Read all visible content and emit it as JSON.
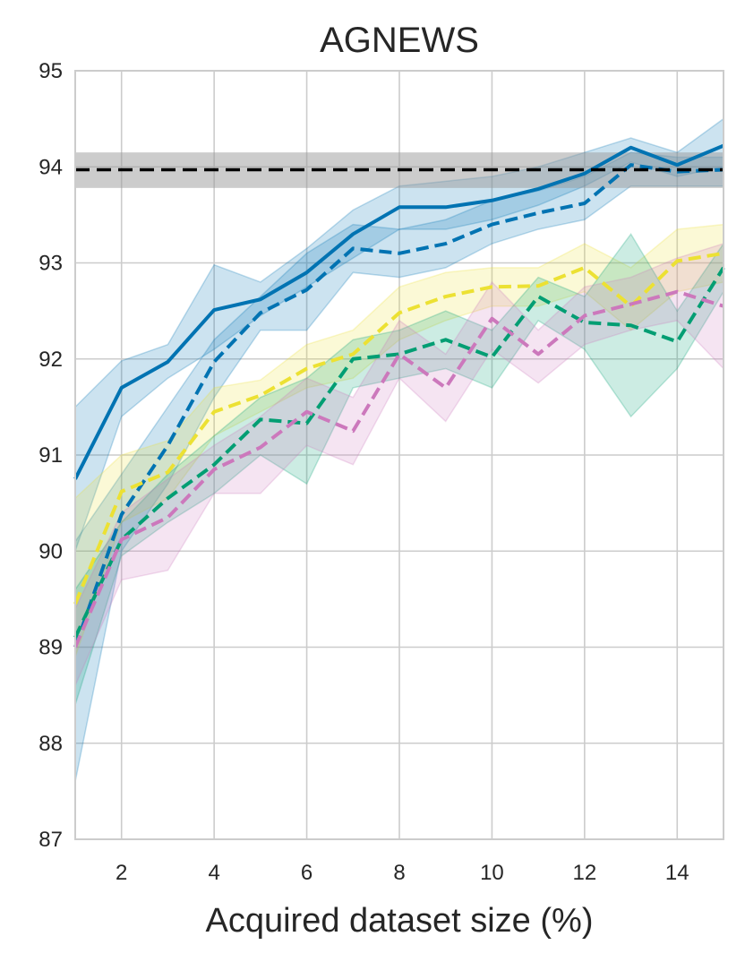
{
  "chart_data": {
    "type": "line",
    "title": "AGNEWS",
    "xlabel": "Acquired dataset size (%)",
    "ylabel": "",
    "xlim": [
      1,
      15
    ],
    "ylim": [
      87,
      95
    ],
    "xticks": [
      2,
      4,
      6,
      8,
      10,
      12,
      14
    ],
    "yticks": [
      87,
      88,
      89,
      90,
      91,
      92,
      93,
      94,
      95
    ],
    "grid": true,
    "colors": {
      "blue": "#0173b2",
      "yellow": "#ece133",
      "green": "#029e73",
      "pink": "#cc78bc",
      "reference": "#000000",
      "reference_band": "#999999"
    },
    "reference_line": {
      "y": 93.97,
      "lower": 93.78,
      "upper": 94.15
    },
    "x": [
      1,
      2,
      3,
      4,
      5,
      6,
      7,
      8,
      9,
      10,
      11,
      12,
      13,
      14,
      15
    ],
    "series": [
      {
        "color_key": "blue",
        "dash": "solid",
        "values": [
          90.75,
          91.7,
          91.97,
          92.51,
          92.62,
          92.9,
          93.3,
          93.58,
          93.58,
          93.65,
          93.77,
          93.93,
          94.2,
          94.02,
          94.22
        ],
        "lower": [
          90.0,
          91.4,
          91.8,
          92.1,
          92.45,
          92.75,
          93.05,
          93.35,
          93.35,
          93.45,
          93.6,
          93.8,
          94.05,
          93.9,
          94.0
        ],
        "upper": [
          91.5,
          91.98,
          92.15,
          92.98,
          92.8,
          93.15,
          93.55,
          93.8,
          93.85,
          93.9,
          94.0,
          94.15,
          94.3,
          94.15,
          94.5
        ]
      },
      {
        "color_key": "blue",
        "dash": "dash",
        "values": [
          89.0,
          90.38,
          91.1,
          91.97,
          92.48,
          92.72,
          93.15,
          93.1,
          93.2,
          93.4,
          93.52,
          93.62,
          94.02,
          93.95,
          93.97
        ],
        "lower": [
          87.6,
          90.0,
          90.7,
          91.6,
          92.3,
          92.3,
          92.9,
          92.85,
          92.95,
          93.2,
          93.35,
          93.45,
          93.8,
          93.8,
          93.8
        ],
        "upper": [
          90.1,
          90.8,
          91.5,
          92.2,
          92.65,
          93.1,
          93.4,
          93.35,
          93.45,
          93.65,
          93.75,
          93.9,
          94.15,
          94.1,
          94.1
        ]
      },
      {
        "color_key": "yellow",
        "dash": "dash",
        "values": [
          89.45,
          90.62,
          90.82,
          91.45,
          91.62,
          91.9,
          92.05,
          92.48,
          92.65,
          92.75,
          92.76,
          92.95,
          92.55,
          93.02,
          93.1
        ],
        "lower": [
          88.9,
          90.3,
          90.55,
          91.2,
          91.45,
          91.7,
          91.8,
          92.2,
          92.4,
          92.55,
          92.55,
          92.7,
          92.3,
          92.7,
          92.8
        ],
        "upper": [
          90.55,
          91.0,
          91.15,
          91.7,
          91.78,
          92.15,
          92.3,
          92.75,
          92.9,
          92.95,
          92.95,
          93.2,
          92.95,
          93.35,
          93.4
        ]
      },
      {
        "color_key": "green",
        "dash": "dash",
        "values": [
          89.1,
          90.12,
          90.55,
          90.9,
          91.37,
          91.33,
          92.0,
          92.05,
          92.2,
          92.02,
          92.65,
          92.38,
          92.35,
          92.18,
          92.95
        ],
        "lower": [
          88.4,
          89.95,
          90.3,
          90.6,
          91.0,
          90.7,
          91.7,
          91.8,
          91.9,
          91.7,
          92.4,
          92.1,
          91.4,
          91.9,
          92.7
        ],
        "upper": [
          89.6,
          90.3,
          90.8,
          91.2,
          91.6,
          91.8,
          92.2,
          92.3,
          92.5,
          92.3,
          92.85,
          92.65,
          93.3,
          92.5,
          93.2
        ]
      },
      {
        "color_key": "pink",
        "dash": "dash",
        "values": [
          89.0,
          90.12,
          90.35,
          90.85,
          91.08,
          91.45,
          91.25,
          92.05,
          91.7,
          92.42,
          92.05,
          92.45,
          92.57,
          92.7,
          92.55
        ],
        "lower": [
          88.6,
          89.7,
          89.8,
          90.6,
          90.6,
          91.1,
          90.9,
          91.8,
          91.35,
          92.1,
          91.75,
          92.15,
          92.3,
          92.4,
          91.9
        ],
        "upper": [
          89.4,
          90.4,
          90.75,
          91.1,
          91.4,
          91.8,
          91.6,
          92.4,
          92.05,
          92.8,
          92.3,
          92.75,
          92.85,
          93.05,
          93.2
        ]
      }
    ]
  }
}
